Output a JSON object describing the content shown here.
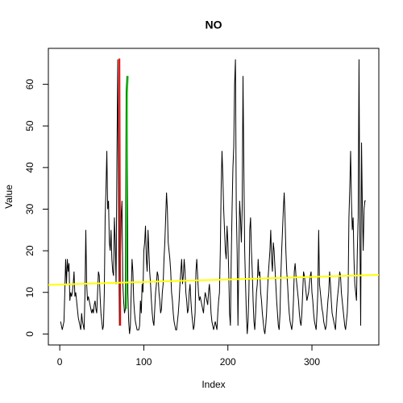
{
  "chart_data": {
    "type": "line",
    "title": "NO",
    "x_label": "Index",
    "y_label": "Value",
    "xlim": [
      -13.56,
      379.56
    ],
    "ylim": [
      -2.64,
      68.64
    ],
    "xticks": [
      0,
      100,
      200,
      300
    ],
    "yticks": [
      0,
      10,
      20,
      30,
      40,
      50,
      60
    ],
    "series": [
      {
        "color": "#000000",
        "values": [
          3,
          2,
          1,
          2,
          3,
          10,
          18,
          12,
          18,
          15,
          17,
          8,
          10,
          9,
          10,
          12,
          15,
          9,
          10,
          8,
          6,
          4,
          3,
          2,
          1,
          5,
          3,
          2,
          1,
          10,
          25,
          12,
          8,
          9,
          8,
          7,
          6,
          5,
          6,
          5,
          7,
          8,
          6,
          5,
          10,
          15,
          14,
          9,
          5,
          3,
          1,
          2,
          10,
          28,
          35,
          44,
          30,
          32,
          22,
          20,
          25,
          18,
          15,
          14,
          28,
          22,
          12,
          42,
          66,
          28,
          2,
          15,
          28,
          32,
          12,
          8,
          5,
          6,
          58,
          62,
          10,
          3,
          0,
          2,
          10,
          18,
          15,
          8,
          5,
          3,
          2,
          1,
          1,
          1,
          2,
          8,
          5,
          12,
          10,
          20,
          22,
          26,
          18,
          15,
          25,
          20,
          15,
          12,
          8,
          5,
          3,
          2,
          6,
          10,
          12,
          15,
          14,
          10,
          8,
          5,
          6,
          10,
          12,
          18,
          22,
          28,
          34,
          30,
          22,
          20,
          18,
          15,
          10,
          8,
          5,
          3,
          2,
          1,
          1,
          3,
          5,
          8,
          12,
          15,
          18,
          12,
          14,
          18,
          15,
          10,
          8,
          5,
          6,
          10,
          12,
          8,
          5,
          3,
          1,
          2,
          5,
          15,
          18,
          14,
          10,
          8,
          9,
          8,
          7,
          6,
          5,
          8,
          10,
          9,
          8,
          7,
          10,
          12,
          9,
          5,
          3,
          2,
          1,
          2,
          3,
          2,
          1,
          5,
          8,
          10,
          20,
          35,
          44,
          38,
          30,
          25,
          20,
          18,
          26,
          22,
          15,
          5,
          2,
          18,
          30,
          40,
          45,
          60,
          66,
          30,
          20,
          2,
          18,
          32,
          28,
          22,
          30,
          62,
          40,
          20,
          12,
          5,
          0,
          3,
          10,
          25,
          28,
          20,
          15,
          8,
          3,
          1,
          5,
          10,
          12,
          18,
          14,
          15,
          10,
          8,
          5,
          3,
          1,
          0,
          2,
          5,
          10,
          14,
          17,
          20,
          25,
          18,
          15,
          22,
          20,
          16,
          12,
          8,
          5,
          2,
          1,
          5,
          14,
          20,
          25,
          30,
          34,
          28,
          20,
          15,
          12,
          8,
          5,
          3,
          2,
          1,
          3,
          8,
          15,
          17,
          14,
          12,
          10,
          8,
          5,
          3,
          2,
          5,
          10,
          15,
          14,
          12,
          10,
          8,
          9,
          10,
          12,
          14,
          15,
          10,
          8,
          5,
          3,
          2,
          1,
          5,
          10,
          25,
          12,
          10,
          8,
          6,
          5,
          3,
          2,
          1,
          2,
          5,
          8,
          10,
          15,
          12,
          8,
          5,
          4,
          3,
          2,
          1,
          5,
          8,
          10,
          12,
          15,
          14,
          10,
          8,
          6,
          4,
          2,
          1,
          3,
          5,
          10,
          28,
          35,
          44,
          32,
          25,
          28,
          18,
          12,
          10,
          8,
          20,
          28,
          66,
          25,
          2,
          46,
          30,
          20,
          30,
          32,
          32
        ]
      },
      {
        "color": "#ff0000",
        "x": [
          70,
          71,
          72
        ],
        "values": [
          66,
          66,
          2
        ]
      },
      {
        "color": "#00cc00",
        "x": [
          79,
          80,
          81
        ],
        "values": [
          6,
          58,
          62
        ]
      },
      {
        "color": "#ffff00",
        "x": [
          -13.56,
          379.56
        ],
        "values": [
          11.8,
          14.2
        ]
      }
    ]
  }
}
